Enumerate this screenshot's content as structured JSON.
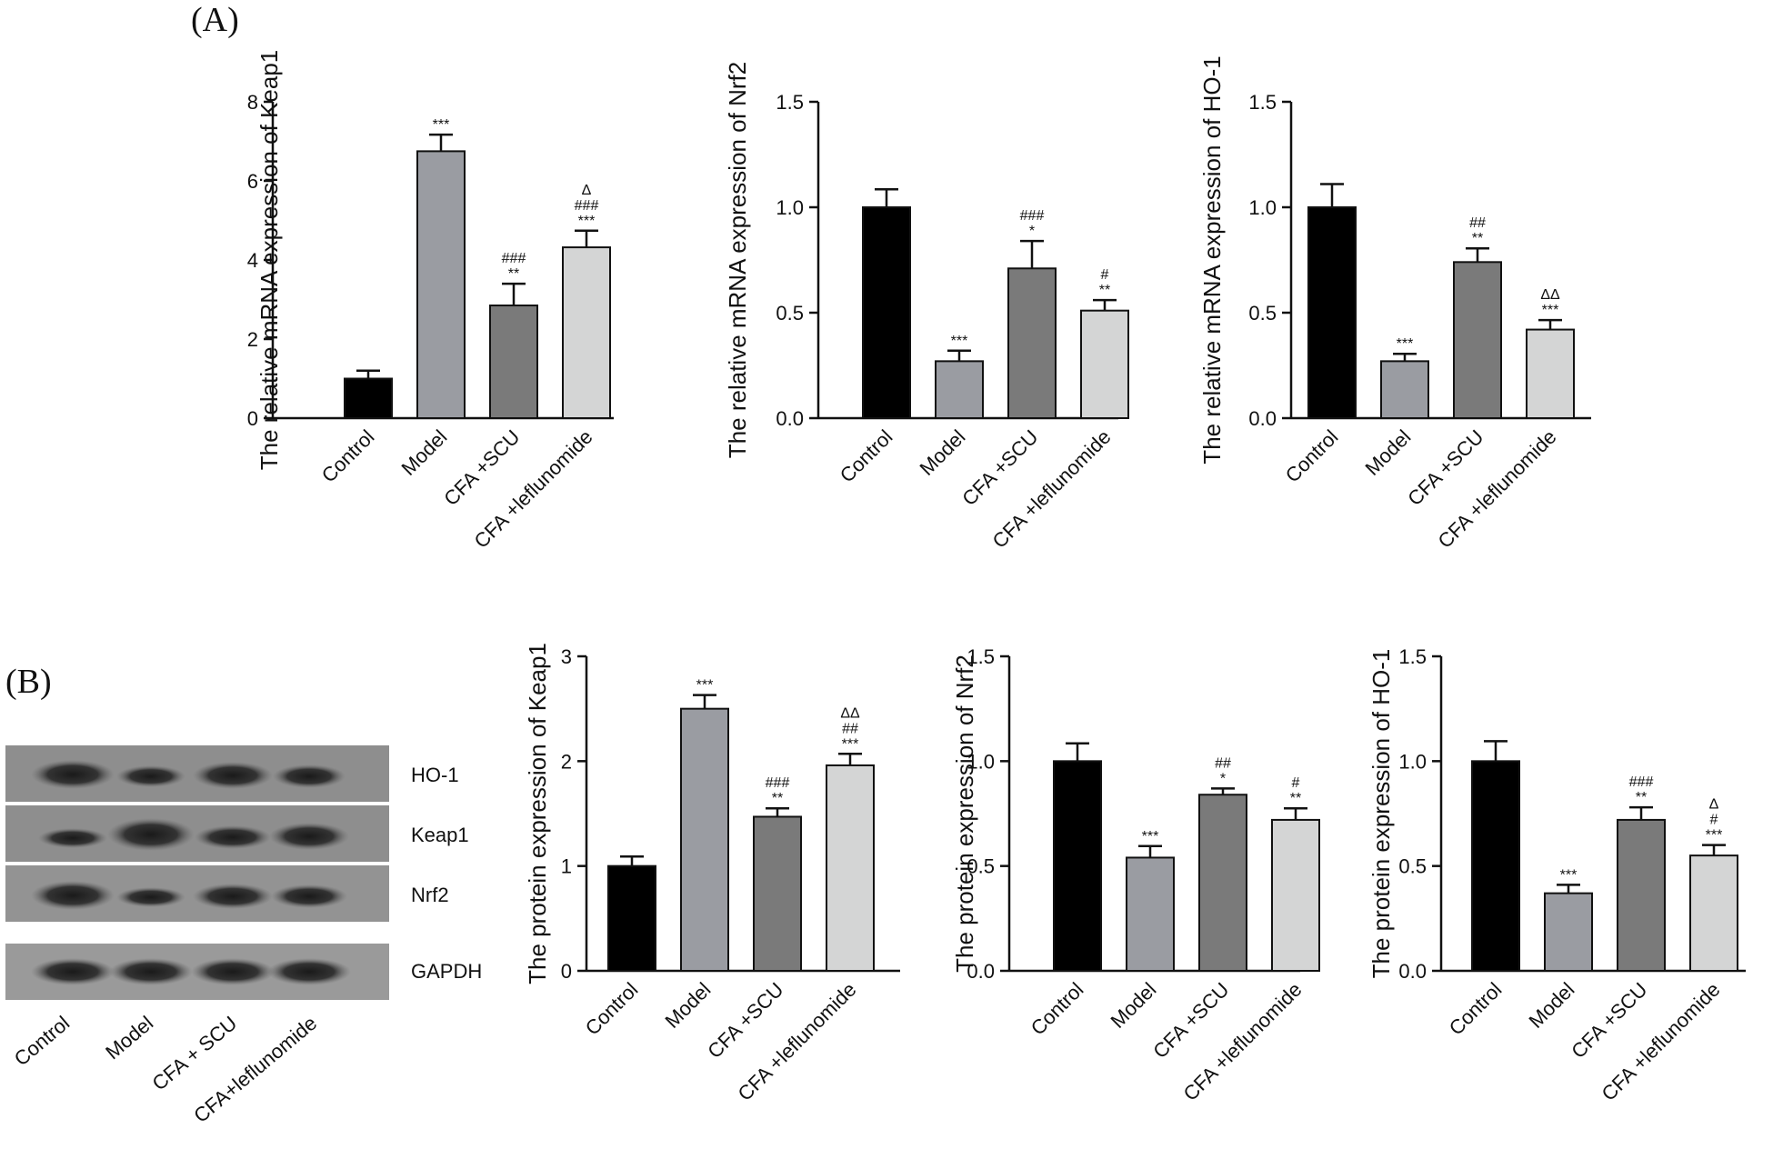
{
  "panel_labels": {
    "a": "(A)",
    "b": "(B)"
  },
  "blot": {
    "proteins": [
      "HO-1",
      "Keap1",
      "Nrf2",
      "GAPDH"
    ],
    "lanes": [
      "Control",
      "Model",
      "CFA + SCU",
      "CFA+leflunomide"
    ]
  },
  "chart_data": [
    {
      "id": "mrna-keap1",
      "type": "bar",
      "ylabel": "The relative mRNA expression of  Keap1",
      "categories": [
        "Control",
        "Model",
        "CFA +SCU",
        "CFA +leflunomide"
      ],
      "values": [
        1.0,
        6.75,
        2.85,
        4.32
      ],
      "errors": [
        0.2,
        0.42,
        0.55,
        0.42
      ],
      "colors": [
        "#000000",
        "#9a9ca2",
        "#7a7a7a",
        "#d4d5d5"
      ],
      "ylim": [
        0,
        8
      ],
      "yticks": [
        "0",
        "2",
        "4",
        "6",
        "8"
      ],
      "significance": [
        [],
        [
          "***"
        ],
        [
          "###",
          "**"
        ],
        [
          "Δ",
          "###",
          "***"
        ]
      ]
    },
    {
      "id": "mrna-nrf2",
      "type": "bar",
      "ylabel": "The relative mRNA expression of  Nrf2",
      "categories": [
        "Control",
        "Model",
        "CFA +SCU",
        "CFA +leflunomide"
      ],
      "values": [
        1.0,
        0.27,
        0.71,
        0.51
      ],
      "errors": [
        0.085,
        0.05,
        0.13,
        0.05
      ],
      "colors": [
        "#000000",
        "#9a9ca2",
        "#7a7a7a",
        "#d4d5d5"
      ],
      "ylim": [
        0,
        1.5
      ],
      "yticks": [
        "0.0",
        "0.5",
        "1.0",
        "1.5"
      ],
      "significance": [
        [],
        [
          "***"
        ],
        [
          "###",
          "*"
        ],
        [
          "#",
          "**"
        ]
      ]
    },
    {
      "id": "mrna-ho1",
      "type": "bar",
      "ylabel": "The relative mRNA expression of  HO-1",
      "categories": [
        "Control",
        "Model",
        "CFA +SCU",
        "CFA +leflunomide"
      ],
      "values": [
        1.0,
        0.27,
        0.74,
        0.42
      ],
      "errors": [
        0.11,
        0.035,
        0.065,
        0.045
      ],
      "colors": [
        "#000000",
        "#9a9ca2",
        "#7a7a7a",
        "#d4d5d5"
      ],
      "ylim": [
        0,
        1.5
      ],
      "yticks": [
        "0.0",
        "0.5",
        "1.0",
        "1.5"
      ],
      "significance": [
        [],
        [
          "***"
        ],
        [
          "##",
          "**"
        ],
        [
          "ΔΔ",
          "***"
        ]
      ]
    },
    {
      "id": "protein-keap1",
      "type": "bar",
      "ylabel": "The protein expression of  Keap1",
      "categories": [
        "Control",
        "Model",
        "CFA +SCU",
        "CFA +leflunomide"
      ],
      "values": [
        1.0,
        2.5,
        1.47,
        1.96
      ],
      "errors": [
        0.09,
        0.13,
        0.08,
        0.11
      ],
      "colors": [
        "#000000",
        "#9a9ca2",
        "#7a7a7a",
        "#d4d5d5"
      ],
      "ylim": [
        0,
        3
      ],
      "yticks": [
        "0",
        "1",
        "2",
        "3"
      ],
      "significance": [
        [],
        [
          "***"
        ],
        [
          "###",
          "**"
        ],
        [
          "ΔΔ",
          "##",
          "***"
        ]
      ]
    },
    {
      "id": "protein-nrf2",
      "type": "bar",
      "ylabel": "The protein expression of  Nrf2",
      "categories": [
        "Control",
        "Model",
        "CFA +SCU",
        "CFA +leflunomide"
      ],
      "values": [
        1.0,
        0.54,
        0.84,
        0.72
      ],
      "errors": [
        0.085,
        0.055,
        0.03,
        0.055
      ],
      "colors": [
        "#000000",
        "#9a9ca2",
        "#7a7a7a",
        "#d4d5d5"
      ],
      "ylim": [
        0,
        1.5
      ],
      "yticks": [
        "0.0",
        "0.5",
        "1.0",
        "1.5"
      ],
      "significance": [
        [],
        [
          "***"
        ],
        [
          "##",
          "*"
        ],
        [
          "#",
          "**"
        ]
      ]
    },
    {
      "id": "protein-ho1",
      "type": "bar",
      "ylabel": "The protein expression of  HO-1",
      "categories": [
        "Control",
        "Model",
        "CFA +SCU",
        "CFA +leflunomide"
      ],
      "values": [
        1.0,
        0.37,
        0.72,
        0.55
      ],
      "errors": [
        0.095,
        0.04,
        0.06,
        0.05
      ],
      "colors": [
        "#000000",
        "#9a9ca2",
        "#7a7a7a",
        "#d4d5d5"
      ],
      "ylim": [
        0,
        1.5
      ],
      "yticks": [
        "0.0",
        "0.5",
        "1.0",
        "1.5"
      ],
      "significance": [
        [],
        [
          "***"
        ],
        [
          "###",
          "**"
        ],
        [
          "Δ",
          "#",
          "***"
        ]
      ]
    }
  ]
}
